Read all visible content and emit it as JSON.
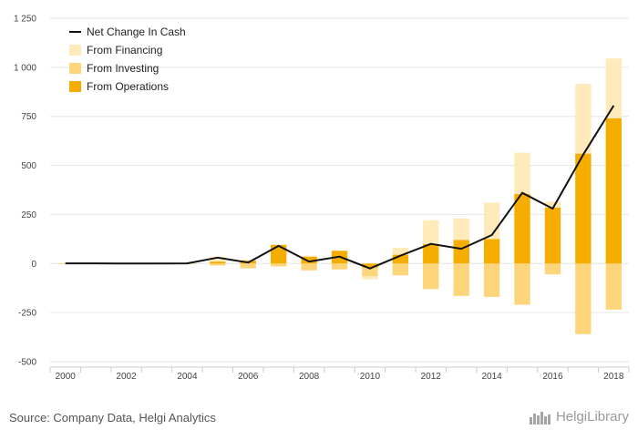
{
  "colors": {
    "financing": "#ffeabb",
    "investing": "#fdd57a",
    "operations": "#f5ad00",
    "net": "#111111",
    "grid": "#e6e6e6",
    "axis": "#cccccc"
  },
  "source_text": "Source: Company Data, Helgi Analytics",
  "logo_text": "HelgiLibrary",
  "chart_data": {
    "type": "bar",
    "stacked": true,
    "legend_position": "top-left",
    "grid": true,
    "ylim": [
      -500,
      1250
    ],
    "yticks": [
      -500,
      -250,
      0,
      250,
      500,
      750,
      1000,
      1250
    ],
    "ytick_labels": [
      "-500",
      "-250",
      "0",
      "250",
      "500",
      "750",
      "1 000",
      "1 250"
    ],
    "x": [
      2000,
      2001,
      2002,
      2003,
      2004,
      2005,
      2006,
      2007,
      2008,
      2009,
      2010,
      2011,
      2012,
      2013,
      2014,
      2015,
      2016,
      2017,
      2018
    ],
    "xtick_labels": [
      "2000",
      "2002",
      "2004",
      "2006",
      "2008",
      "2010",
      "2012",
      "2014",
      "2016",
      "2018"
    ],
    "legend": [
      "Net Change In Cash",
      "From Financing",
      "From Investing",
      "From Operations"
    ],
    "series": [
      {
        "name": "From Operations",
        "key": "operations",
        "values": [
          1,
          0,
          0,
          0,
          0,
          10,
          15,
          95,
          35,
          65,
          -20,
          45,
          100,
          120,
          125,
          355,
          285,
          560,
          740
        ]
      },
      {
        "name": "From Investing",
        "key": "investing",
        "values": [
          -3,
          -1,
          -1,
          -2,
          -1,
          -10,
          -25,
          -15,
          -35,
          -30,
          -45,
          -60,
          -130,
          -165,
          -170,
          -210,
          -55,
          -360,
          -235
        ]
      },
      {
        "name": "From Financing",
        "key": "financing",
        "values": [
          1,
          1,
          0,
          1,
          0,
          25,
          5,
          0,
          5,
          0,
          -15,
          35,
          120,
          110,
          185,
          210,
          30,
          355,
          305
        ]
      },
      {
        "name": "Net Change In Cash",
        "key": "net",
        "type": "line",
        "values": [
          1,
          1,
          0,
          0,
          1,
          30,
          5,
          90,
          10,
          35,
          -25,
          40,
          100,
          75,
          145,
          360,
          280,
          555,
          805
        ]
      }
    ]
  }
}
